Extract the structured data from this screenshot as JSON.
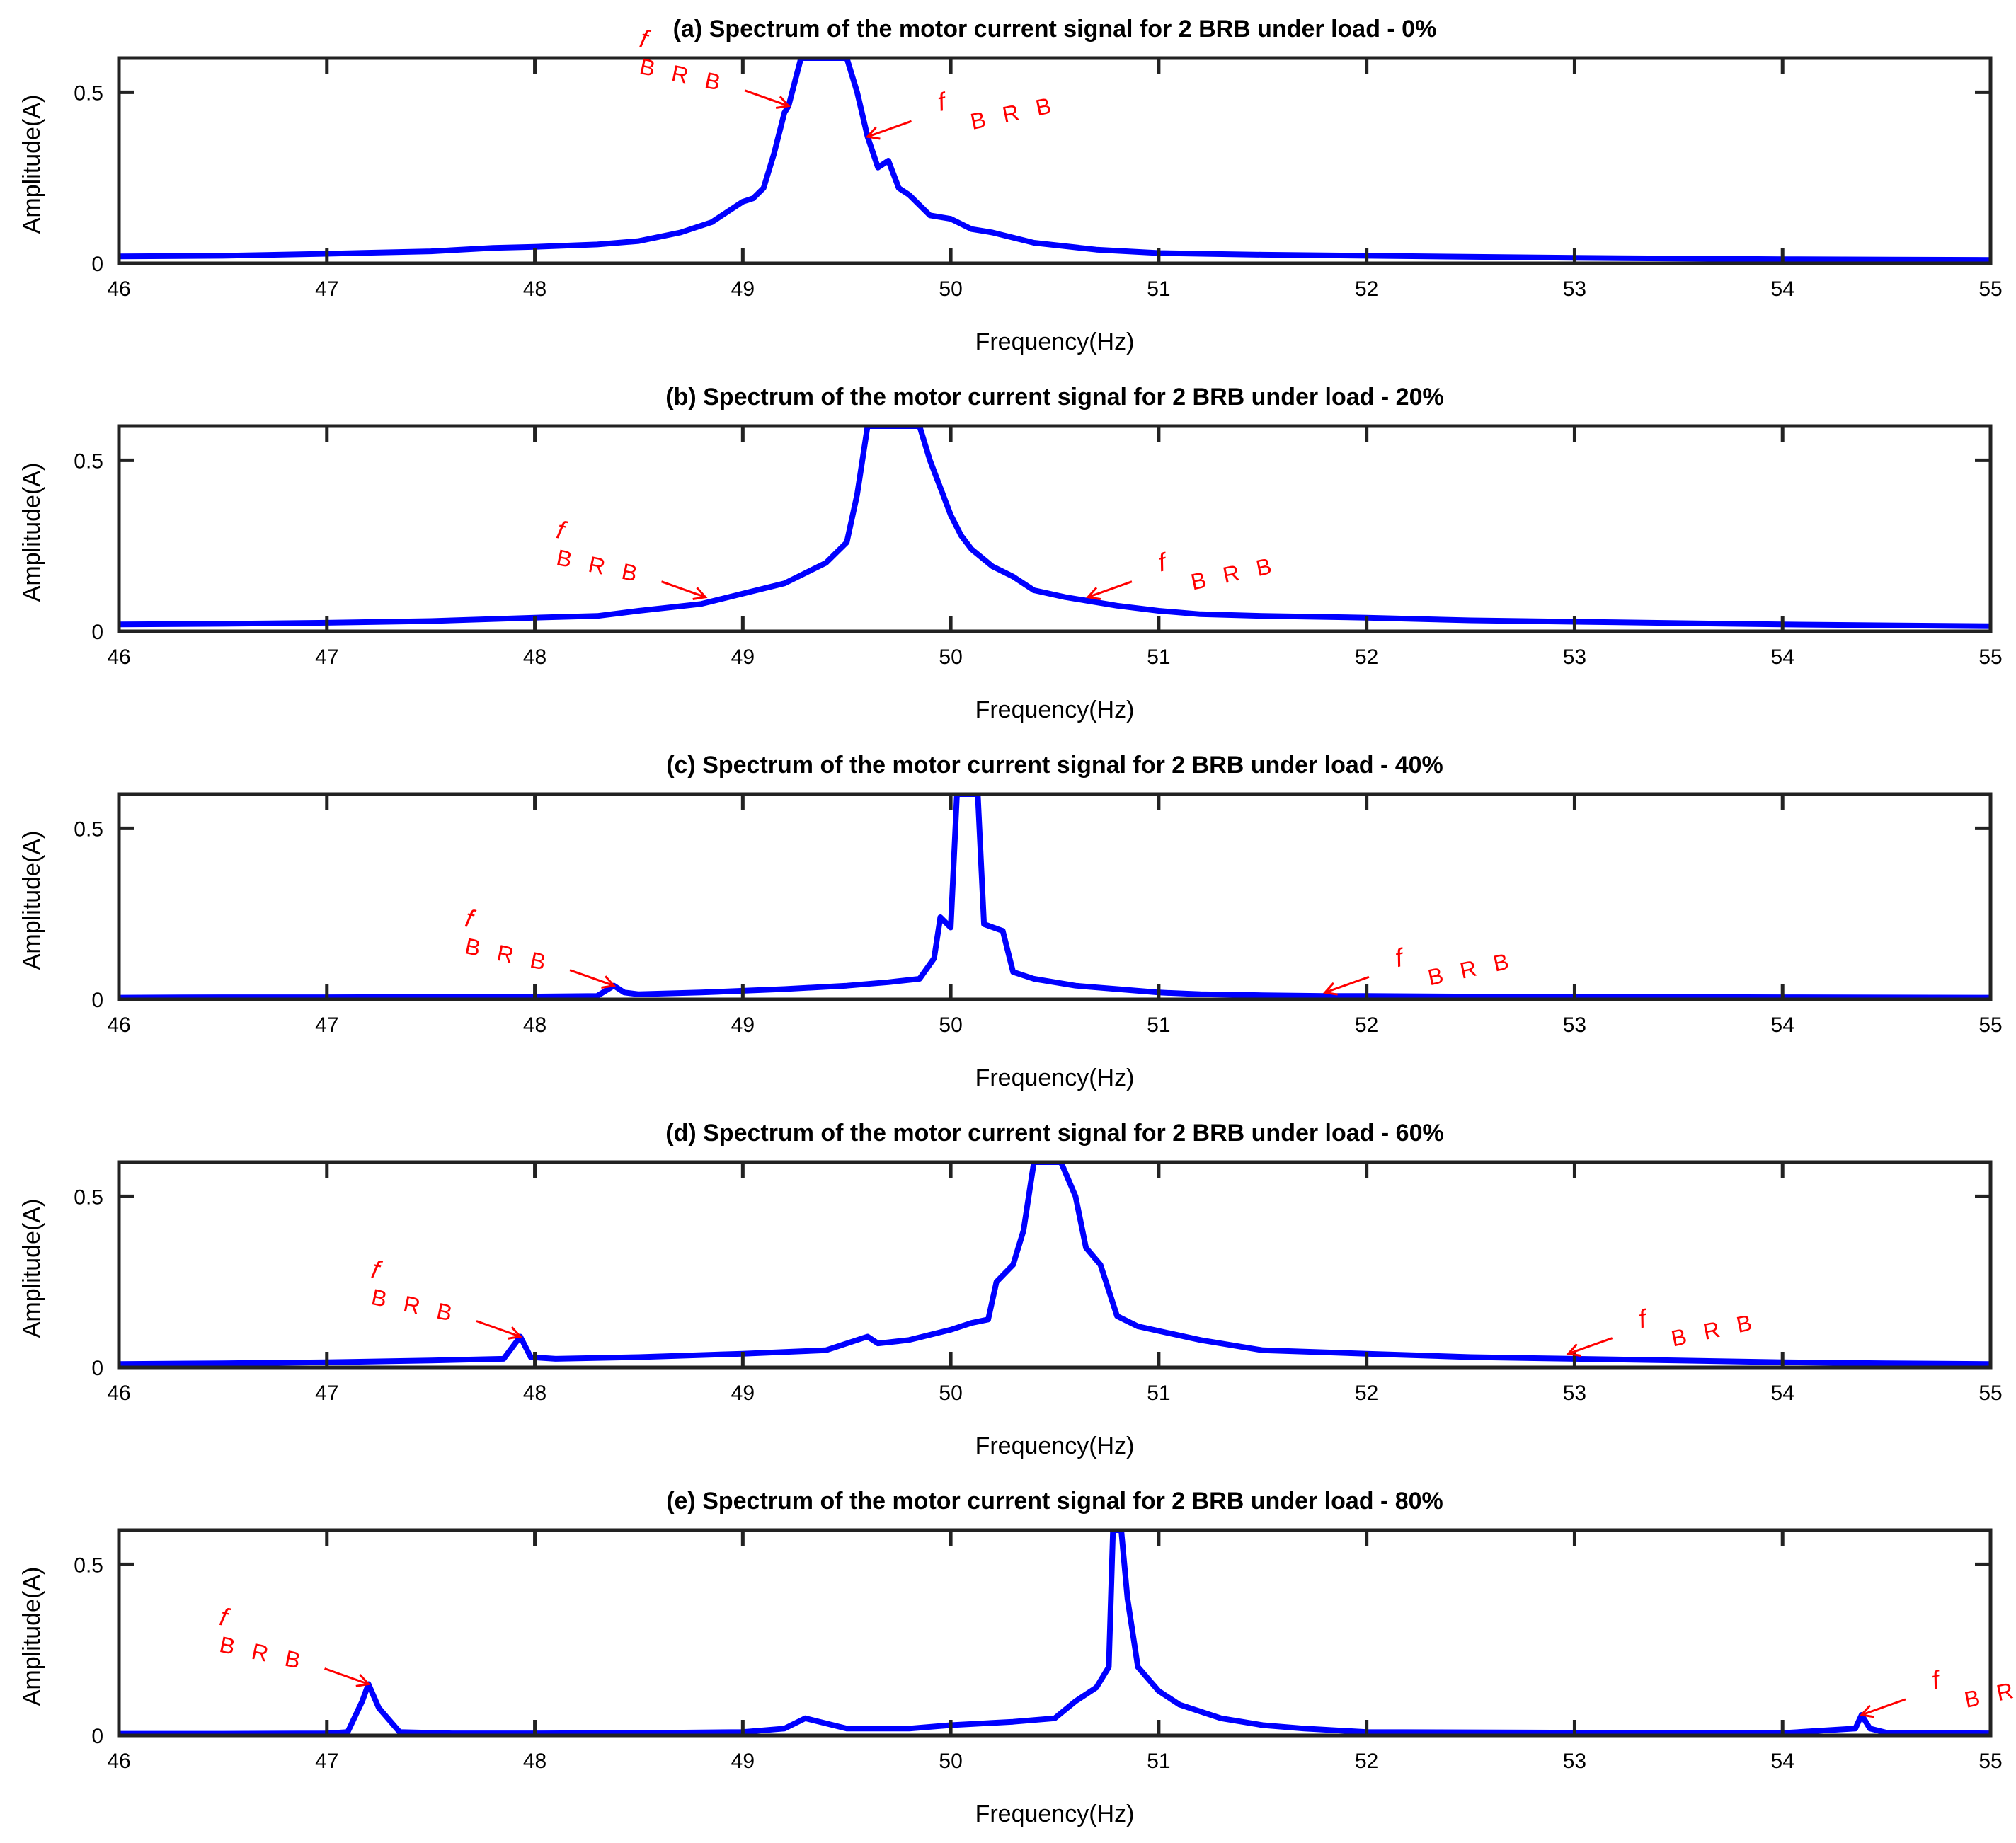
{
  "chart_data": [
    {
      "type": "line",
      "title": "(a) Spectrum of the motor current signal for 2 BRB under load -  0%",
      "xlabel": "Frequency(Hz)",
      "ylabel": "Amplitude(A)",
      "xlim": [
        46,
        55
      ],
      "ylim": [
        0,
        0.6
      ],
      "xticks": [
        "46",
        "47",
        "48",
        "49",
        "50",
        "51",
        "52",
        "53",
        "54",
        "55"
      ],
      "yticks": [
        "0",
        "0.5"
      ],
      "series": [
        {
          "name": "spectrum",
          "color": "#0000ff",
          "x": [
            46.0,
            46.5,
            47.0,
            47.5,
            47.8,
            48.0,
            48.3,
            48.5,
            48.7,
            48.85,
            48.9,
            49.0,
            49.05,
            49.1,
            49.15,
            49.2,
            49.22,
            49.28,
            49.3,
            49.45,
            49.5,
            49.55,
            49.6,
            49.65,
            49.7,
            49.75,
            49.8,
            49.9,
            50.0,
            50.1,
            50.2,
            50.4,
            50.7,
            51.0,
            51.5,
            52.0,
            53.0,
            54.0,
            55.0
          ],
          "y": [
            0.02,
            0.022,
            0.028,
            0.035,
            0.045,
            0.048,
            0.055,
            0.065,
            0.09,
            0.12,
            0.14,
            0.18,
            0.19,
            0.22,
            0.32,
            0.44,
            0.46,
            0.6,
            0.6,
            0.6,
            0.6,
            0.5,
            0.37,
            0.28,
            0.3,
            0.22,
            0.2,
            0.14,
            0.13,
            0.1,
            0.09,
            0.06,
            0.04,
            0.03,
            0.025,
            0.022,
            0.016,
            0.012,
            0.01
          ]
        }
      ],
      "annotations": [
        {
          "f": "f",
          "sub": "B R B",
          "side": "left",
          "x": 49.22,
          "y": 0.46
        },
        {
          "f": "f",
          "sub": "B R B",
          "side": "right",
          "x": 49.6,
          "y": 0.37
        }
      ]
    },
    {
      "type": "line",
      "title": "(b) Spectrum of the motor current signal for 2 BRB under load -  20%",
      "xlabel": "Frequency(Hz)",
      "ylabel": "Amplitude(A)",
      "xlim": [
        46,
        55
      ],
      "ylim": [
        0,
        0.6
      ],
      "xticks": [
        "46",
        "47",
        "48",
        "49",
        "50",
        "51",
        "52",
        "53",
        "54",
        "55"
      ],
      "yticks": [
        "0",
        "0.5"
      ],
      "series": [
        {
          "name": "spectrum",
          "color": "#0000ff",
          "x": [
            46.0,
            46.5,
            47.0,
            47.5,
            48.0,
            48.3,
            48.5,
            48.8,
            49.0,
            49.2,
            49.3,
            49.4,
            49.5,
            49.55,
            49.6,
            49.65,
            49.85,
            49.9,
            49.95,
            50.0,
            50.05,
            50.1,
            50.2,
            50.3,
            50.4,
            50.55,
            50.65,
            50.8,
            51.0,
            51.2,
            51.5,
            52.0,
            52.5,
            53.0,
            54.0,
            55.0
          ],
          "y": [
            0.02,
            0.022,
            0.025,
            0.03,
            0.04,
            0.045,
            0.06,
            0.08,
            0.11,
            0.14,
            0.17,
            0.2,
            0.26,
            0.4,
            0.6,
            0.6,
            0.6,
            0.5,
            0.42,
            0.34,
            0.28,
            0.24,
            0.19,
            0.16,
            0.12,
            0.1,
            0.09,
            0.075,
            0.06,
            0.05,
            0.045,
            0.04,
            0.032,
            0.028,
            0.02,
            0.015
          ]
        }
      ],
      "annotations": [
        {
          "f": "f",
          "sub": "B R B",
          "side": "left",
          "x": 48.82,
          "y": 0.1
        },
        {
          "f": "f",
          "sub": "B R B",
          "side": "right",
          "x": 50.66,
          "y": 0.1
        }
      ]
    },
    {
      "type": "line",
      "title": "(c) Spectrum of the motor current signal for 2 BRB under load -  40%",
      "xlabel": "Frequency(Hz)",
      "ylabel": "Amplitude(A)",
      "xlim": [
        46,
        55
      ],
      "ylim": [
        0,
        0.6
      ],
      "xticks": [
        "46",
        "47",
        "48",
        "49",
        "50",
        "51",
        "52",
        "53",
        "54",
        "55"
      ],
      "yticks": [
        "0",
        "0.5"
      ],
      "series": [
        {
          "name": "spectrum",
          "color": "#0000ff",
          "x": [
            46.0,
            46.5,
            47.0,
            47.5,
            48.0,
            48.3,
            48.38,
            48.43,
            48.5,
            48.8,
            49.0,
            49.2,
            49.5,
            49.7,
            49.85,
            49.92,
            49.95,
            50.0,
            50.03,
            50.06,
            50.1,
            50.13,
            50.16,
            50.25,
            50.3,
            50.4,
            50.6,
            50.8,
            51.0,
            51.2,
            51.5,
            51.8,
            52.0,
            52.5,
            53.0,
            54.0,
            55.0
          ],
          "y": [
            0.005,
            0.006,
            0.006,
            0.007,
            0.008,
            0.01,
            0.04,
            0.02,
            0.015,
            0.02,
            0.025,
            0.03,
            0.04,
            0.05,
            0.06,
            0.12,
            0.24,
            0.21,
            0.6,
            0.6,
            0.6,
            0.6,
            0.22,
            0.2,
            0.08,
            0.06,
            0.04,
            0.03,
            0.02,
            0.015,
            0.012,
            0.01,
            0.01,
            0.008,
            0.007,
            0.006,
            0.005
          ]
        }
      ],
      "annotations": [
        {
          "f": "f",
          "sub": "B R B",
          "side": "left",
          "x": 48.38,
          "y": 0.04
        },
        {
          "f": "f",
          "sub": "B R B",
          "side": "right",
          "x": 51.8,
          "y": 0.02
        }
      ]
    },
    {
      "type": "line",
      "title": "(d) Spectrum of the motor current signal for 2 BRB under load -  60%",
      "xlabel": "Frequency(Hz)",
      "ylabel": "Amplitude(A)",
      "xlim": [
        46,
        55
      ],
      "ylim": [
        0,
        0.6
      ],
      "xticks": [
        "46",
        "47",
        "48",
        "49",
        "50",
        "51",
        "52",
        "53",
        "54",
        "55"
      ],
      "yticks": [
        "0",
        "0.5"
      ],
      "series": [
        {
          "name": "spectrum",
          "color": "#0000ff",
          "x": [
            46.0,
            46.5,
            47.0,
            47.5,
            47.85,
            47.93,
            47.98,
            48.1,
            48.5,
            49.0,
            49.4,
            49.6,
            49.65,
            49.8,
            50.0,
            50.1,
            50.18,
            50.22,
            50.3,
            50.35,
            50.4,
            50.53,
            50.6,
            50.65,
            50.72,
            50.8,
            50.9,
            51.05,
            51.2,
            51.5,
            52.0,
            52.5,
            53.0,
            53.5,
            54.0,
            54.5,
            55.0
          ],
          "y": [
            0.01,
            0.012,
            0.015,
            0.02,
            0.025,
            0.09,
            0.03,
            0.025,
            0.03,
            0.04,
            0.05,
            0.09,
            0.07,
            0.08,
            0.11,
            0.13,
            0.14,
            0.25,
            0.3,
            0.4,
            0.6,
            0.6,
            0.5,
            0.35,
            0.3,
            0.15,
            0.12,
            0.1,
            0.08,
            0.05,
            0.04,
            0.03,
            0.025,
            0.02,
            0.015,
            0.012,
            0.01
          ]
        }
      ],
      "annotations": [
        {
          "f": "f",
          "sub": "B R B",
          "side": "left",
          "x": 47.93,
          "y": 0.09
        },
        {
          "f": "f",
          "sub": "B R B",
          "side": "right",
          "x": 52.97,
          "y": 0.04
        }
      ]
    },
    {
      "type": "line",
      "title": "(e) Spectrum of the motor current signal for 2 BRB under load -  80%",
      "xlabel": "Frequency(Hz)",
      "ylabel": "Amplitude(A)",
      "xlim": [
        46,
        55
      ],
      "ylim": [
        0,
        0.6
      ],
      "xticks": [
        "46",
        "47",
        "48",
        "49",
        "50",
        "51",
        "52",
        "53",
        "54",
        "55"
      ],
      "yticks": [
        "0",
        "0.5"
      ],
      "series": [
        {
          "name": "spectrum",
          "color": "#0000ff",
          "x": [
            46.0,
            46.5,
            47.0,
            47.1,
            47.17,
            47.2,
            47.25,
            47.35,
            47.6,
            48.0,
            48.5,
            49.0,
            49.2,
            49.3,
            49.5,
            49.8,
            50.0,
            50.3,
            50.5,
            50.6,
            50.7,
            50.76,
            50.78,
            50.82,
            50.85,
            50.9,
            51.0,
            51.1,
            51.3,
            51.5,
            51.7,
            52.0,
            53.0,
            54.0,
            54.35,
            54.38,
            54.42,
            54.5,
            55.0
          ],
          "y": [
            0.005,
            0.005,
            0.006,
            0.01,
            0.1,
            0.15,
            0.08,
            0.01,
            0.006,
            0.006,
            0.007,
            0.01,
            0.02,
            0.05,
            0.02,
            0.02,
            0.03,
            0.04,
            0.05,
            0.1,
            0.14,
            0.2,
            0.6,
            0.6,
            0.4,
            0.2,
            0.13,
            0.09,
            0.05,
            0.03,
            0.02,
            0.01,
            0.008,
            0.007,
            0.02,
            0.06,
            0.02,
            0.008,
            0.006
          ]
        }
      ],
      "annotations": [
        {
          "f": "f",
          "sub": "B R B",
          "side": "left",
          "x": 47.2,
          "y": 0.15
        },
        {
          "f": "f",
          "sub": "B R B",
          "side": "right",
          "x": 54.38,
          "y": 0.06
        }
      ]
    }
  ]
}
